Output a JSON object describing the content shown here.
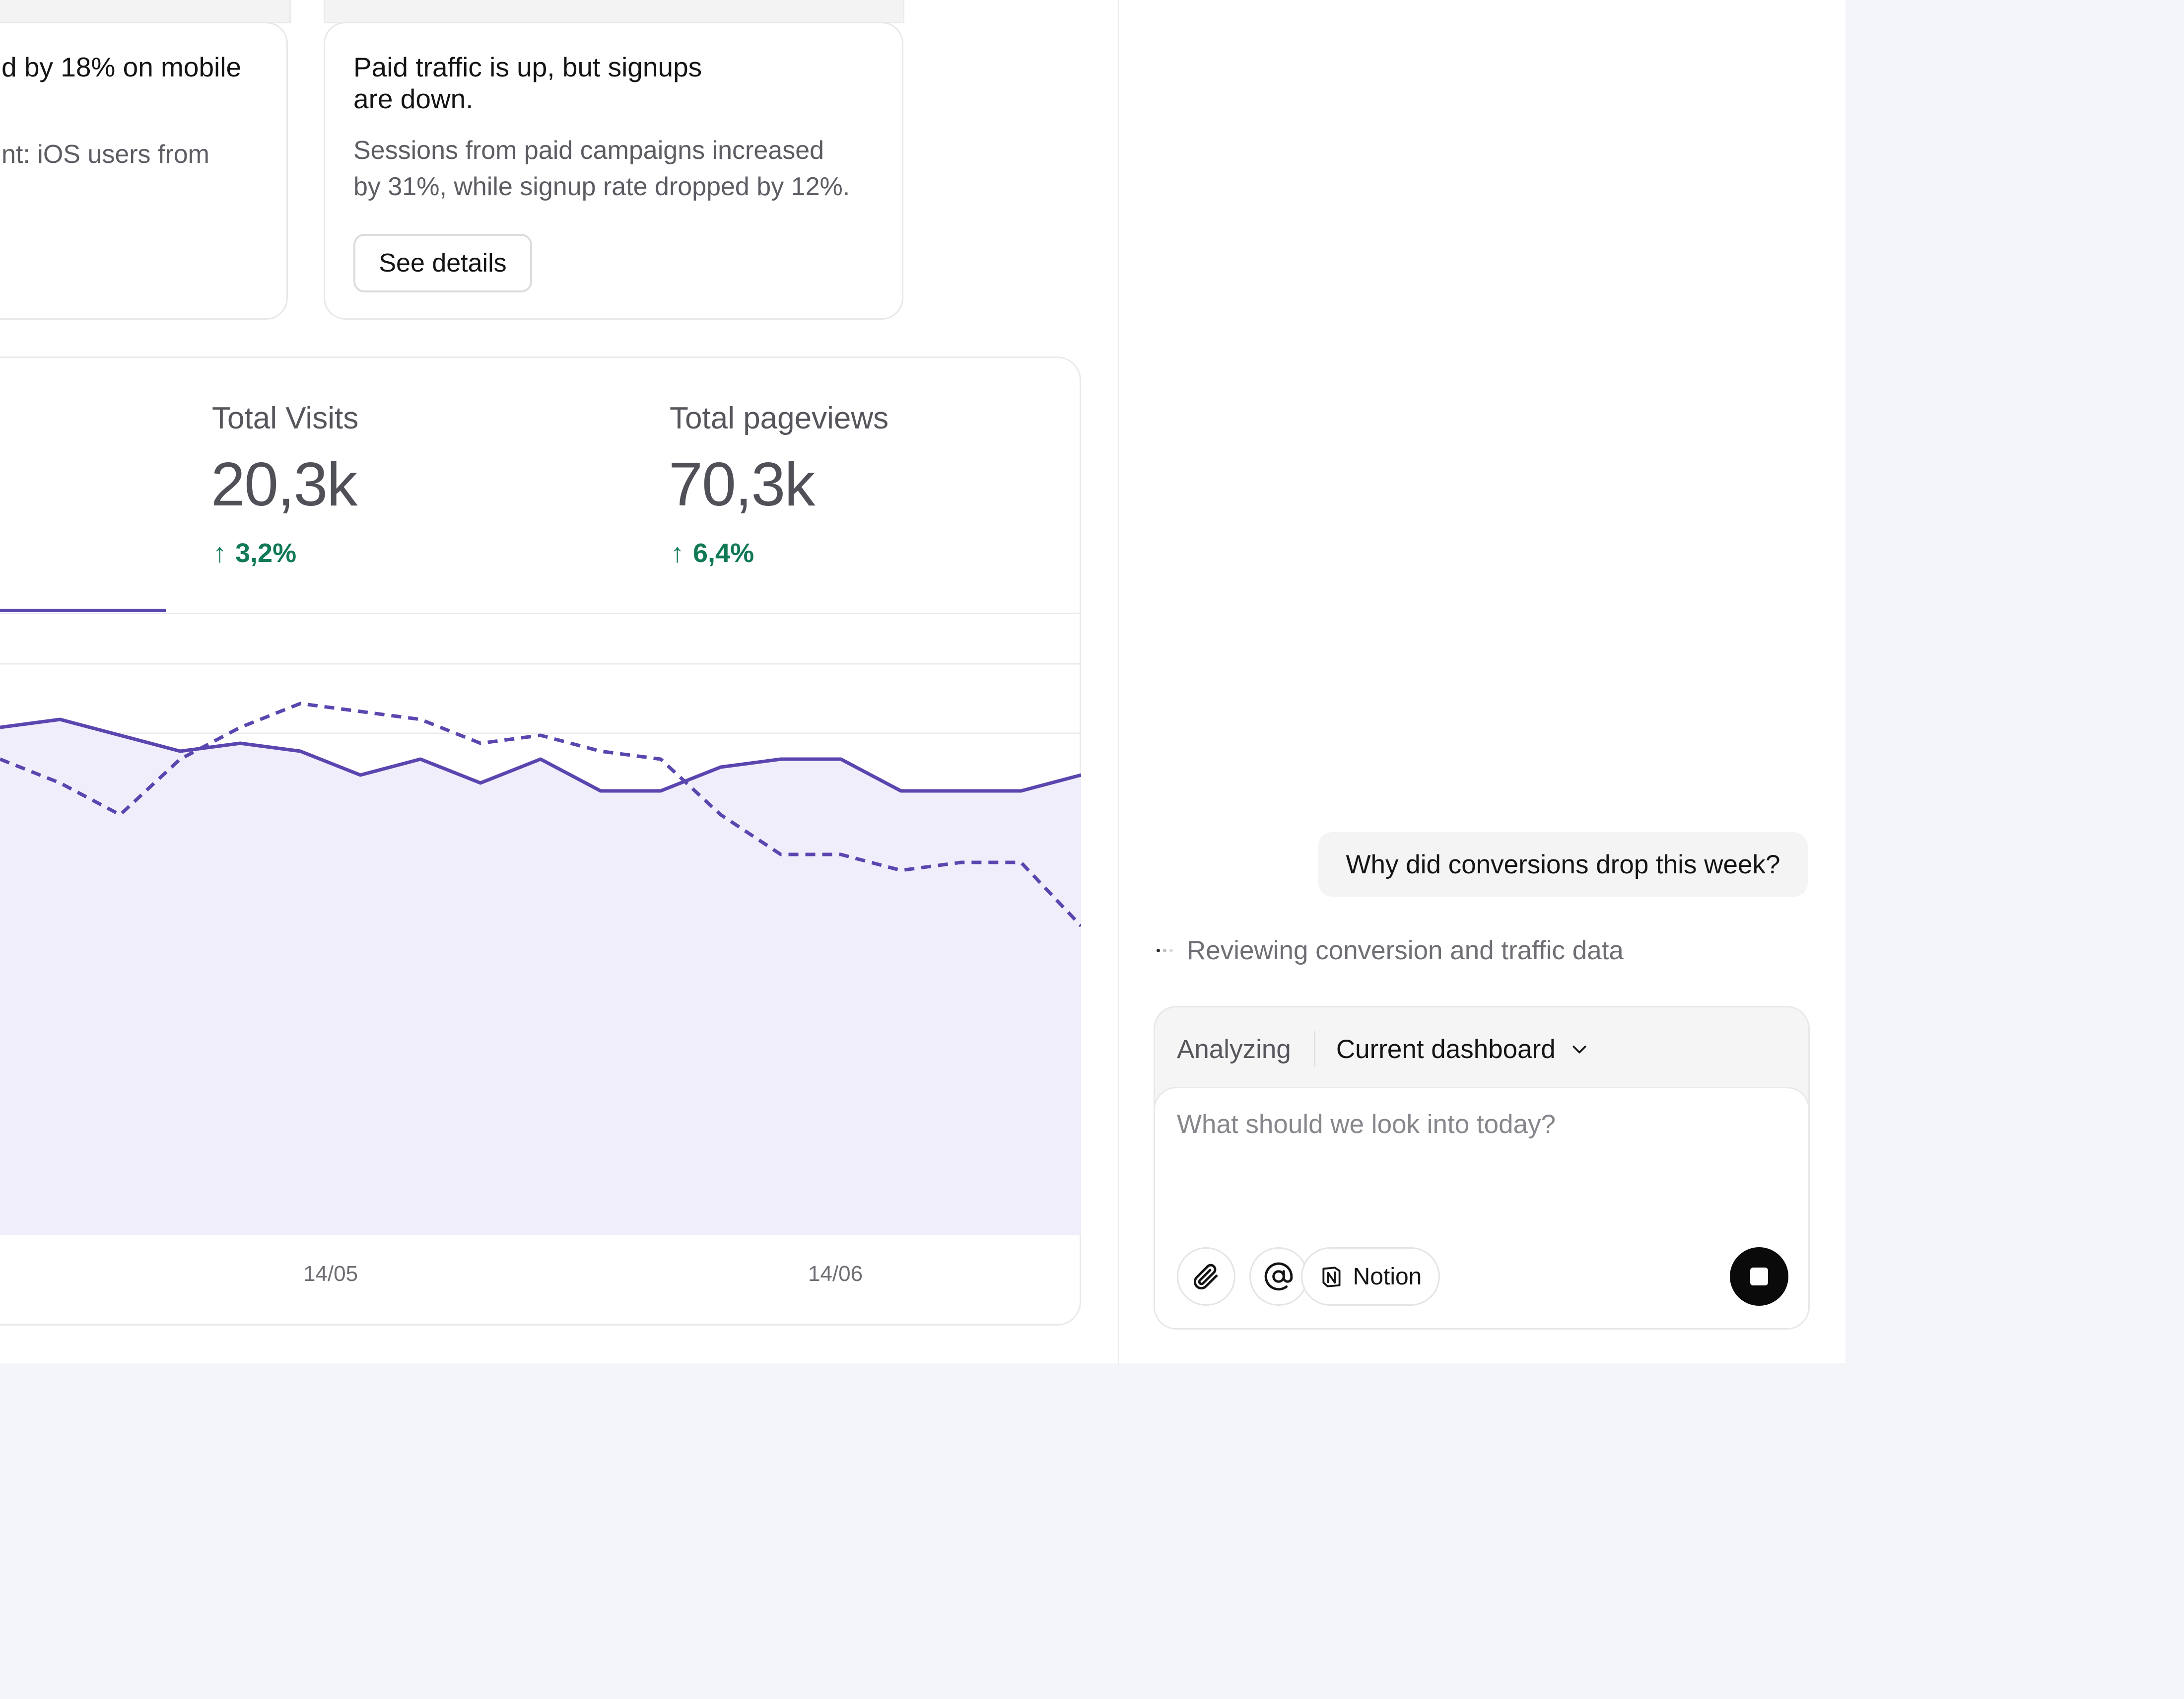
{
  "insights": [
    {
      "title": "d by 18% on mobile",
      "body": "nt: iOS users from"
    },
    {
      "title_line1": "Paid traffic is up, but signups",
      "title_line2": "are down.",
      "body_line1": "Sessions from paid campaigns increased",
      "body_line2": "by 31%, while signup rate dropped by 12%.",
      "button_label": "See details"
    }
  ],
  "metrics": [
    {
      "label": "Total Visits",
      "value": "20,3k",
      "delta": "3,2%",
      "arrow": "↑"
    },
    {
      "label": "Total pageviews",
      "value": "70,3k",
      "delta": "6,4%",
      "arrow": "↑"
    }
  ],
  "colors": {
    "accent": "#5b46b0",
    "area_fill": "#f1eefb",
    "positive": "#117a55"
  },
  "chart_data": {
    "type": "line",
    "x_ticks": [
      "14/05",
      "14/06"
    ],
    "series": [
      {
        "style": "solid",
        "values": [
          32,
          33,
          31,
          29,
          30,
          29,
          26,
          28,
          25,
          28,
          24,
          24,
          27,
          28,
          28,
          24,
          24,
          24,
          26
        ]
      },
      {
        "style": "dashed",
        "values": [
          28,
          25,
          21,
          28,
          32,
          35,
          34,
          33,
          30,
          31,
          29,
          28,
          21,
          16,
          16,
          14,
          15,
          15,
          7
        ]
      }
    ],
    "gridlines": true,
    "legend": ""
  },
  "chat": {
    "user_message": "Why did conversions drop this week?",
    "status": "Reviewing conversion and traffic data",
    "composer": {
      "mode_label": "Analyzing",
      "context": "Current dashboard",
      "placeholder": "What should we look into today?",
      "tool_notion": "Notion"
    },
    "icons": [
      "paperclip-icon",
      "at-sign-icon",
      "notion-icon",
      "chevron-down-icon",
      "stop-icon",
      "arrow-up-icon"
    ]
  }
}
